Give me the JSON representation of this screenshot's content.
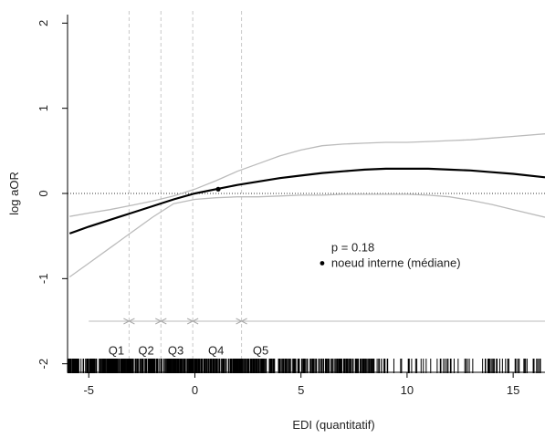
{
  "chart_data": {
    "type": "line",
    "xlabel": "EDI (quantitatif)",
    "ylabel": "log aOR",
    "xlim": [
      -6,
      16.5
    ],
    "ylim": [
      -2.1,
      2.1
    ],
    "x_ticks": [
      -5,
      0,
      5,
      10,
      15
    ],
    "x_tick_labels": [
      "-5",
      "0",
      "5",
      "10",
      "15"
    ],
    "y_ticks": [
      -2,
      -1,
      0,
      1,
      2
    ],
    "y_tick_labels": [
      "-2",
      "-1",
      "0",
      "1",
      "2"
    ],
    "reference_line_y": 0,
    "series": [
      {
        "role": "estimate",
        "color": "#000000",
        "x": [
          -5.9,
          -5,
          -4,
          -3,
          -2,
          -1,
          0,
          1,
          2,
          3,
          4,
          5,
          6,
          7,
          8,
          9,
          10,
          11,
          12,
          13,
          14,
          15,
          16.5
        ],
        "y": [
          -0.47,
          -0.39,
          -0.31,
          -0.23,
          -0.15,
          -0.07,
          0.0,
          0.05,
          0.1,
          0.14,
          0.18,
          0.21,
          0.24,
          0.26,
          0.28,
          0.29,
          0.29,
          0.29,
          0.28,
          0.27,
          0.25,
          0.23,
          0.19
        ]
      },
      {
        "role": "upper_ci",
        "color": "#bbbbbb",
        "x": [
          -5.9,
          -5,
          -4,
          -3,
          -2,
          -1,
          0,
          1,
          2,
          3,
          4,
          5,
          6,
          7,
          8,
          9,
          10,
          11,
          12,
          13,
          14,
          15,
          16.5
        ],
        "y": [
          -0.27,
          -0.23,
          -0.19,
          -0.14,
          -0.09,
          -0.03,
          0.05,
          0.15,
          0.26,
          0.35,
          0.44,
          0.51,
          0.56,
          0.58,
          0.59,
          0.6,
          0.6,
          0.61,
          0.62,
          0.63,
          0.65,
          0.67,
          0.7
        ]
      },
      {
        "role": "lower_ci",
        "color": "#bbbbbb",
        "x": [
          -5.9,
          -5,
          -4,
          -3,
          -2,
          -1,
          0,
          1,
          2,
          3,
          4,
          5,
          6,
          7,
          8,
          9,
          10,
          11,
          12,
          13,
          14,
          15,
          16.5
        ],
        "y": [
          -0.98,
          -0.82,
          -0.64,
          -0.46,
          -0.28,
          -0.12,
          -0.07,
          -0.05,
          -0.04,
          -0.04,
          -0.03,
          -0.02,
          -0.02,
          -0.01,
          -0.01,
          -0.01,
          -0.01,
          -0.02,
          -0.04,
          -0.08,
          -0.13,
          -0.19,
          -0.28
        ]
      }
    ],
    "internal_knot": {
      "x": 1.1,
      "y": 0.05
    },
    "quintile_cutpoints": [
      -3.1,
      -1.6,
      -0.1,
      2.2
    ],
    "quintile_bar_y": -1.5,
    "quintile_bar_range": [
      -5,
      16.5
    ],
    "quintiles": [
      {
        "label": "Q1",
        "x": -3.7
      },
      {
        "label": "Q2",
        "x": -2.3
      },
      {
        "label": "Q3",
        "x": -0.9
      },
      {
        "label": "Q4",
        "x": 1.0
      },
      {
        "label": "Q5",
        "x": 3.1
      }
    ],
    "quintile_label_y": -1.85,
    "annotations": {
      "p_value": "p = 0.18",
      "knot_legend": "noeud interne (médiane)"
    },
    "annotation_anchor": {
      "x": 6.0,
      "y": -0.68
    },
    "rug_seed": 7
  }
}
